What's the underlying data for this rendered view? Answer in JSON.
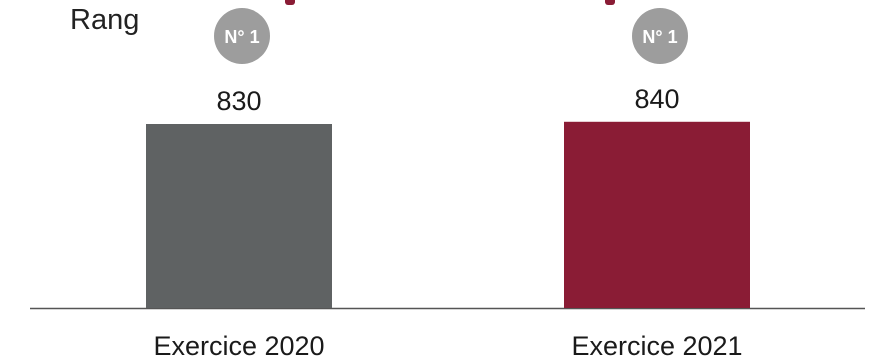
{
  "rank_label": "Rang",
  "colors": {
    "bar_2020": "#5f6263",
    "bar_2021": "#8a1c35",
    "badge": "#9d9d9d",
    "badge_text": "#ffffff",
    "axis": "#555555",
    "text": "#1a1a1a"
  },
  "chart_data": {
    "type": "bar",
    "categories": [
      "Exercice 2020",
      "Exercice 2021"
    ],
    "values": [
      830,
      840
    ],
    "data_labels": [
      "830",
      "840"
    ],
    "rank_badges": [
      "N° 1",
      "N° 1"
    ],
    "ylim": [
      0,
      1000
    ],
    "grid": false,
    "title": "",
    "xlabel": "",
    "ylabel": ""
  }
}
